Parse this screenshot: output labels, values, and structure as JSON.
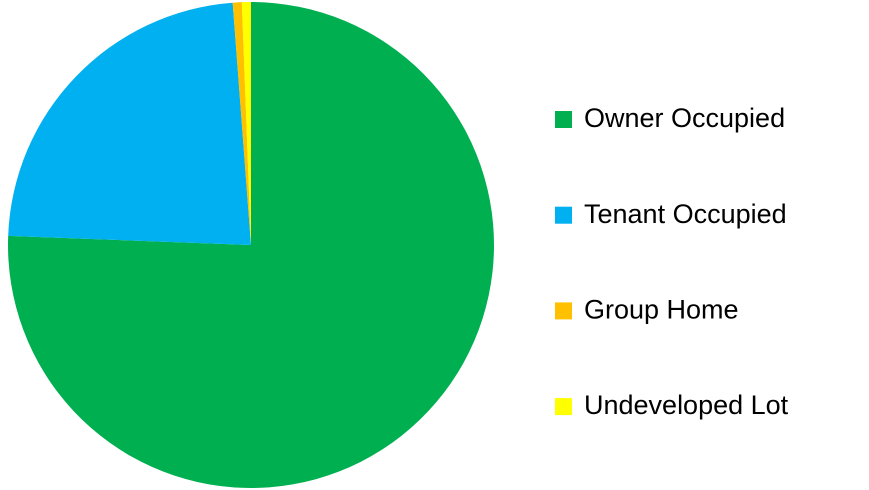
{
  "chart_data": {
    "type": "pie",
    "categories": [
      "Owner Occupied",
      "Tenant Occupied",
      "Group Home",
      "Undeveloped Lot"
    ],
    "values": [
      75.6,
      23.2,
      0.6,
      0.6
    ],
    "colors": [
      "#00b050",
      "#00b0f0",
      "#ffc000",
      "#ffff00"
    ],
    "legend": "right"
  }
}
